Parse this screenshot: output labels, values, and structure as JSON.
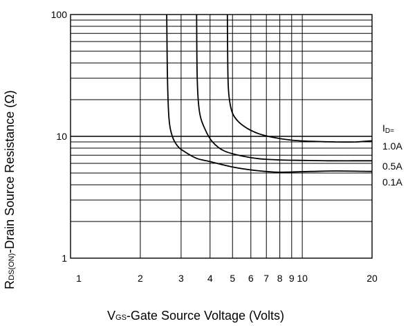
{
  "chart_data": {
    "type": "line",
    "x_scale": "log",
    "y_scale": "log",
    "xlim": [
      1,
      20
    ],
    "ylim": [
      1,
      100
    ],
    "grid": true,
    "xlabel": {
      "prefix": "V",
      "subscript": "GS",
      "text": "-Gate Source Voltage (Volts)"
    },
    "ylabel": {
      "prefix": "R",
      "subscript": "DS(ON)",
      "text": "-Drain Source Resistance (Ω)"
    },
    "x_ticks": [
      {
        "value": 1,
        "label": "1"
      },
      {
        "value": 2,
        "label": "2"
      },
      {
        "value": 3,
        "label": "3"
      },
      {
        "value": 4,
        "label": "4"
      },
      {
        "value": 5,
        "label": "5"
      },
      {
        "value": 6,
        "label": "6"
      },
      {
        "value": 7,
        "label": "7"
      },
      {
        "value": 8,
        "label": "8"
      },
      {
        "value": 9,
        "label": "9"
      },
      {
        "value": 10,
        "label": "10"
      },
      {
        "value": 20,
        "label": "20"
      }
    ],
    "y_ticks": [
      {
        "value": 1,
        "label": "1"
      },
      {
        "value": 10,
        "label": "10"
      },
      {
        "value": 100,
        "label": "100"
      }
    ],
    "legend": {
      "title_prefix": "I",
      "title_subscript": "D=",
      "placement": "right"
    },
    "series": [
      {
        "name": "1.0A",
        "x": [
          4.75,
          4.78,
          4.85,
          5.0,
          5.3,
          5.8,
          6.5,
          7.5,
          9.0,
          11,
          14,
          17,
          20
        ],
        "y": [
          100,
          30,
          20,
          15.5,
          13.2,
          11.6,
          10.5,
          9.8,
          9.3,
          9.1,
          9.0,
          9.0,
          9.2
        ]
      },
      {
        "name": "0.5A",
        "x": [
          3.5,
          3.52,
          3.6,
          3.8,
          4.1,
          4.6,
          5.5,
          6.5,
          8,
          10,
          13,
          20
        ],
        "y": [
          100,
          30,
          16,
          11.5,
          9.0,
          7.6,
          6.9,
          6.55,
          6.4,
          6.35,
          6.3,
          6.3
        ]
      },
      {
        "name": "0.1A",
        "x": [
          2.6,
          2.62,
          2.66,
          2.75,
          2.9,
          3.1,
          3.5,
          4.0,
          5.0,
          6.0,
          7.5,
          9.0,
          11,
          14,
          20
        ],
        "y": [
          100,
          30,
          14,
          10,
          8.3,
          7.5,
          6.6,
          6.2,
          5.6,
          5.3,
          5.1,
          5.1,
          5.15,
          5.2,
          5.15
        ]
      }
    ]
  }
}
